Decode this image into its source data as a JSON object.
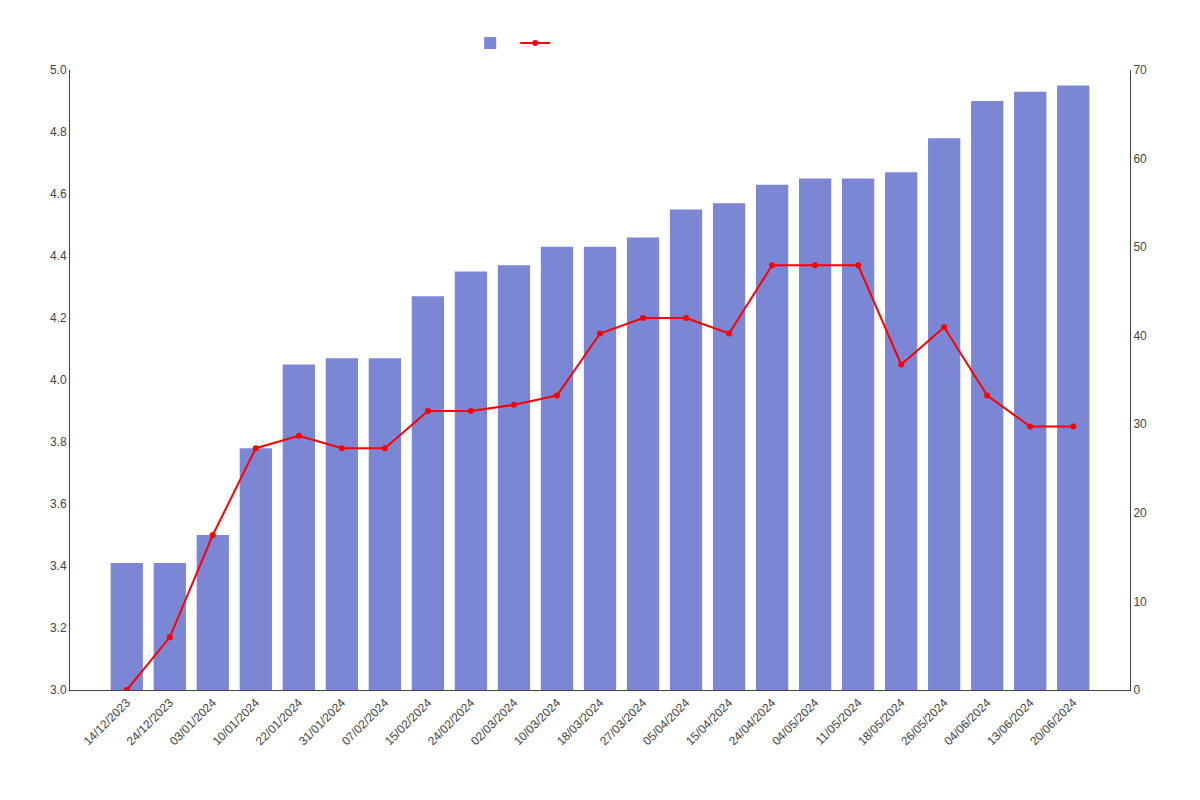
{
  "chart_data": {
    "type": "bar",
    "categories": [
      "14/12/2023",
      "24/12/2023",
      "03/01/2024",
      "10/01/2024",
      "22/01/2024",
      "31/01/2024",
      "07/02/2024",
      "15/02/2024",
      "24/02/2024",
      "02/03/2024",
      "10/03/2024",
      "18/03/2024",
      "27/03/2024",
      "05/04/2024",
      "15/04/2024",
      "24/04/2024",
      "04/05/2024",
      "11/05/2024",
      "18/05/2024",
      "26/05/2024",
      "04/06/2024",
      "13/06/2024",
      "20/06/2024"
    ],
    "series": [
      {
        "type": "bar",
        "color": "#7B86D4",
        "values": [
          3.41,
          3.41,
          3.5,
          3.78,
          4.05,
          4.07,
          4.07,
          4.27,
          4.35,
          4.37,
          4.43,
          4.43,
          4.46,
          4.55,
          4.57,
          4.63,
          4.65,
          4.65,
          4.67,
          4.78,
          4.9,
          4.93,
          4.95
        ]
      },
      {
        "type": "line",
        "color": "#FF0000",
        "marker": "circle",
        "values": [
          3.0,
          3.17,
          3.5,
          3.78,
          3.82,
          3.78,
          3.78,
          3.9,
          3.9,
          3.92,
          3.95,
          4.15,
          4.2,
          4.2,
          4.15,
          4.37,
          4.37,
          4.37,
          4.05,
          4.17,
          3.95,
          3.85,
          3.85
        ]
      }
    ],
    "ylim": [
      3.0,
      5.0
    ],
    "yticks": [
      {
        "value": 3.0,
        "label": "3.0"
      },
      3.2,
      3.4,
      3.6,
      3.8,
      {
        "value": 4.0,
        "label": "4.0"
      },
      4.2,
      4.4,
      4.6,
      4.8,
      {
        "value": 5.0,
        "label": "5.0"
      }
    ],
    "y2lim": [
      0,
      70
    ],
    "y2ticks": [
      0,
      10,
      20,
      30,
      40,
      50,
      60,
      70
    ],
    "grid": false,
    "legend": "top"
  }
}
